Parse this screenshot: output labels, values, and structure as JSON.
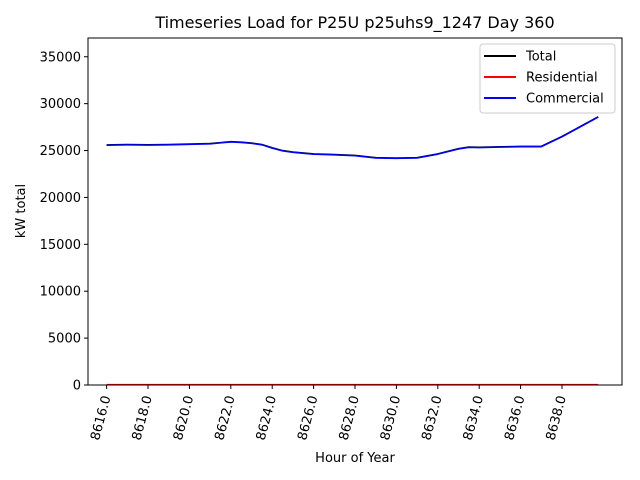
{
  "chart_data": {
    "type": "line",
    "title": "Timeseries Load for P25U p25uhs9_1247  Day 360",
    "xlabel": "Hour of Year",
    "ylabel": "kW total",
    "xlim": [
      8615.1,
      8640.9
    ],
    "ylim": [
      0,
      37000
    ],
    "xticks": [
      8616,
      8618,
      8620,
      8622,
      8624,
      8626,
      8628,
      8630,
      8632,
      8634,
      8636,
      8638
    ],
    "xtick_labels": [
      "8616.0",
      "8618.0",
      "8620.0",
      "8622.0",
      "8624.0",
      "8626.0",
      "8628.0",
      "8630.0",
      "8632.0",
      "8634.0",
      "8636.0",
      "8638.0"
    ],
    "yticks": [
      0,
      5000,
      10000,
      15000,
      20000,
      25000,
      30000,
      35000
    ],
    "ytick_labels": [
      "0",
      "5000",
      "10000",
      "15000",
      "20000",
      "25000",
      "30000",
      "35000"
    ],
    "grid": false,
    "legend": "top-right",
    "x": [
      8616.0,
      8617.0,
      8618.0,
      8619.0,
      8620.0,
      8621.0,
      8621.5,
      8622.0,
      8622.5,
      8623.0,
      8623.5,
      8624.0,
      8624.5,
      8625.0,
      8626.0,
      8627.0,
      8628.0,
      8629.0,
      8630.0,
      8631.0,
      8632.0,
      8633.0,
      8633.5,
      8634.0,
      8635.0,
      8636.0,
      8637.0,
      8638.0,
      8639.0,
      8639.75
    ],
    "series": [
      {
        "name": "Total",
        "color": "#000000",
        "values": [
          25600,
          25650,
          25620,
          25640,
          25700,
          25750,
          25850,
          25950,
          25900,
          25800,
          25650,
          25300,
          25000,
          24850,
          24650,
          24580,
          24480,
          24250,
          24200,
          24250,
          24650,
          25200,
          25380,
          25350,
          25400,
          25450,
          25450,
          26500,
          27700,
          28600
        ]
      },
      {
        "name": "Residential",
        "color": "#ff0000",
        "values": [
          40,
          40,
          40,
          40,
          40,
          40,
          40,
          40,
          40,
          40,
          40,
          40,
          40,
          40,
          40,
          40,
          40,
          40,
          40,
          40,
          40,
          40,
          40,
          40,
          40,
          40,
          40,
          40,
          40,
          40
        ]
      },
      {
        "name": "Commercial",
        "color": "#0000ff",
        "values": [
          25560,
          25610,
          25580,
          25600,
          25660,
          25710,
          25810,
          25910,
          25860,
          25760,
          25610,
          25260,
          24960,
          24810,
          24610,
          24540,
          24440,
          24210,
          24160,
          24210,
          24610,
          25160,
          25340,
          25310,
          25360,
          25410,
          25410,
          26460,
          27660,
          28560
        ]
      }
    ]
  }
}
